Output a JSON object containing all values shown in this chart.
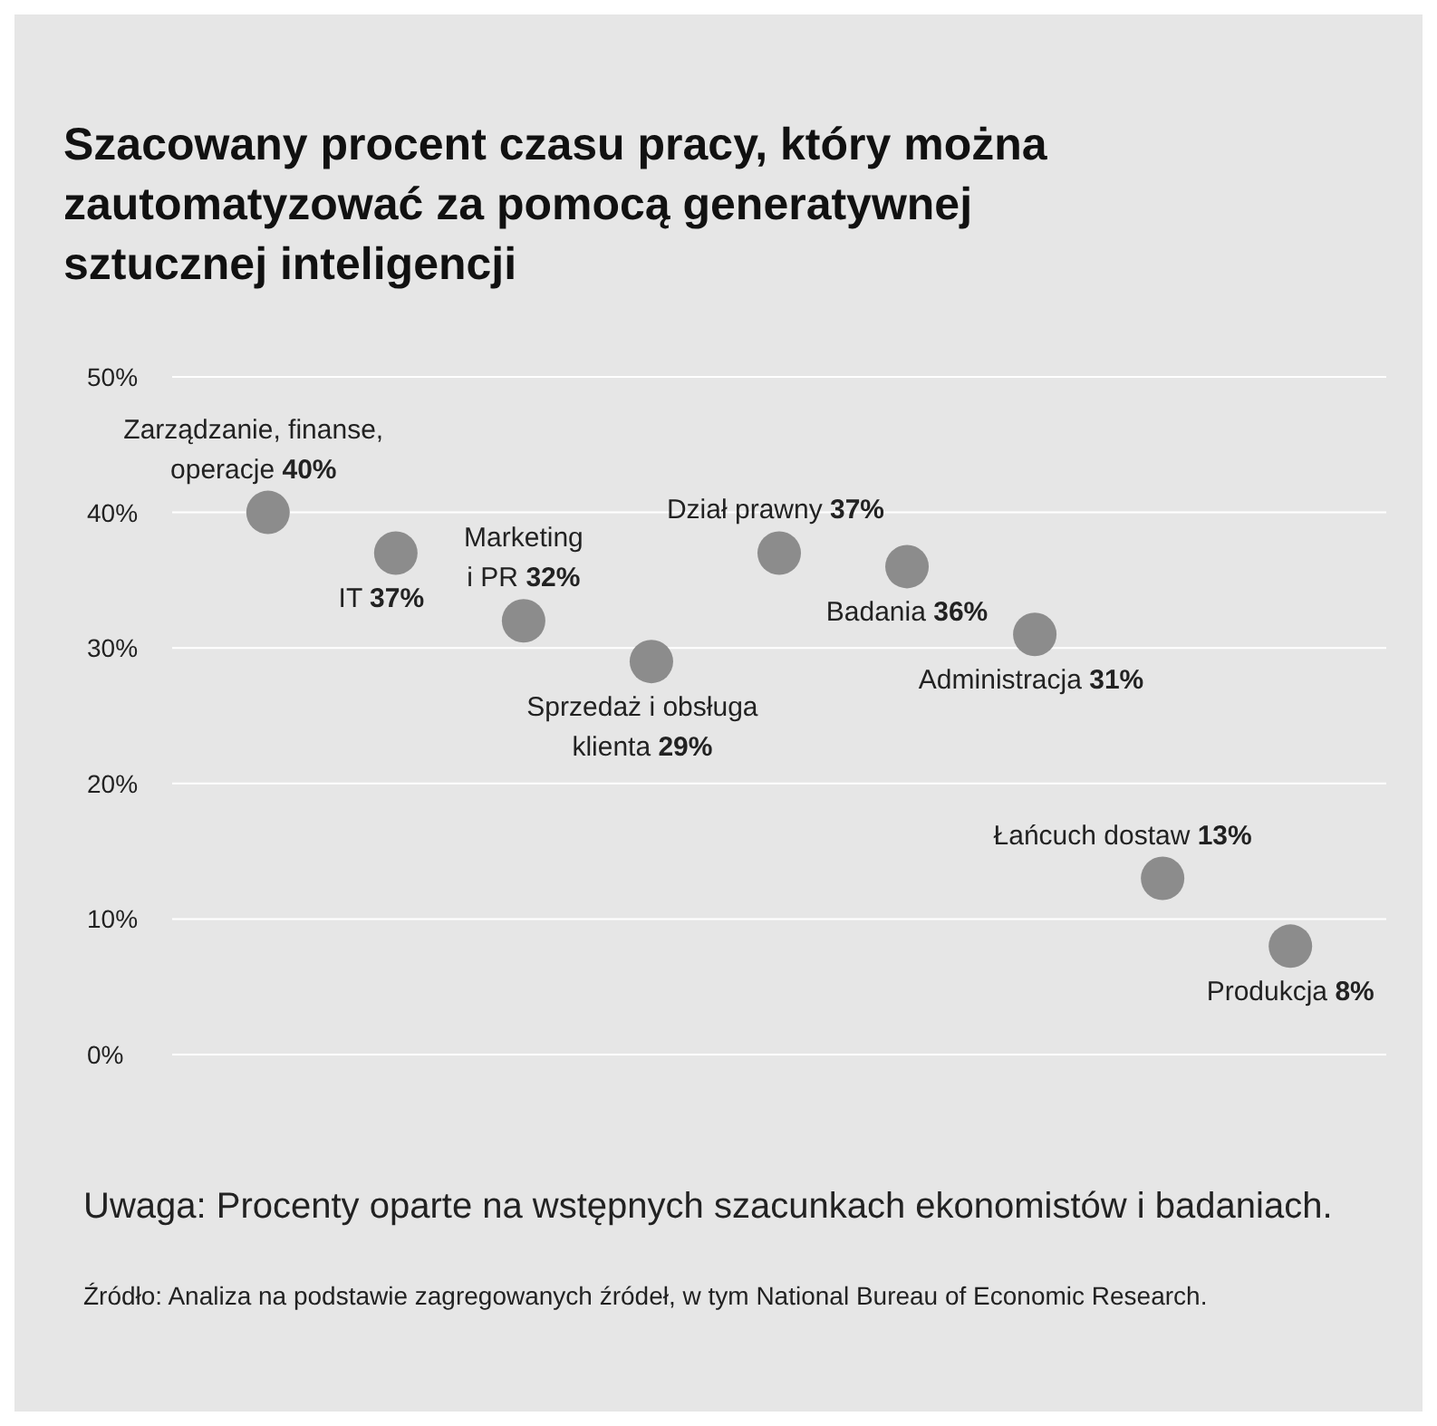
{
  "chart_data": {
    "type": "scatter",
    "title": "Szacowany procent czasu pracy, który można zautomatyzować za pomocą generatywnej sztucznej inteligencji",
    "categories": [
      null,
      null,
      null,
      null,
      null,
      null,
      null,
      null,
      null
    ],
    "series": [
      {
        "name": "Zarządzanie, finanse, operacje",
        "color": "#8c8c8c",
        "values": [
          40,
          null,
          null,
          null,
          null,
          null,
          null,
          null,
          null
        ],
        "value_labels": [
          "40%",
          null,
          null,
          null,
          null,
          null,
          null,
          null,
          null
        ]
      },
      {
        "name": "IT",
        "color": "#8c8c8c",
        "values": [
          null,
          37,
          null,
          null,
          null,
          null,
          null,
          null,
          null
        ],
        "value_labels": [
          null,
          "37%",
          null,
          null,
          null,
          null,
          null,
          null,
          null
        ]
      },
      {
        "name": "Marketing i PR",
        "color": "#8c8c8c",
        "values": [
          null,
          null,
          32,
          null,
          null,
          null,
          null,
          null,
          null
        ],
        "value_labels": [
          null,
          null,
          "32%",
          null,
          null,
          null,
          null,
          null,
          null
        ]
      },
      {
        "name": "Sprzedaż i obsługa klienta",
        "color": "#8c8c8c",
        "values": [
          null,
          null,
          null,
          29,
          null,
          null,
          null,
          null,
          null
        ],
        "value_labels": [
          null,
          null,
          null,
          "29%",
          null,
          null,
          null,
          null,
          null
        ]
      },
      {
        "name": "Dział prawny",
        "color": "#8c8c8c",
        "values": [
          null,
          null,
          null,
          null,
          37,
          null,
          null,
          null,
          null
        ],
        "value_labels": [
          null,
          null,
          null,
          null,
          "37%",
          null,
          null,
          null,
          null
        ]
      },
      {
        "name": "Badania",
        "color": "#8c8c8c",
        "values": [
          null,
          null,
          null,
          null,
          null,
          36,
          null,
          null,
          null
        ],
        "value_labels": [
          null,
          null,
          null,
          null,
          null,
          "36%",
          null,
          null,
          null
        ]
      },
      {
        "name": "Administracja",
        "color": "#8c8c8c",
        "values": [
          null,
          null,
          null,
          null,
          null,
          null,
          31,
          null,
          null
        ],
        "value_labels": [
          null,
          null,
          null,
          null,
          null,
          null,
          "31%",
          null,
          null
        ]
      },
      {
        "name": "Łańcuch dostaw",
        "color": "#8c8c8c",
        "values": [
          null,
          null,
          null,
          null,
          null,
          null,
          null,
          13,
          null
        ],
        "value_labels": [
          null,
          null,
          null,
          null,
          null,
          null,
          null,
          "13%",
          null
        ]
      },
      {
        "name": "Produkcja",
        "color": "#8c8c8c",
        "values": [
          null,
          null,
          null,
          null,
          null,
          null,
          null,
          null,
          8
        ],
        "value_labels": [
          null,
          null,
          null,
          null,
          null,
          null,
          null,
          null,
          "8%"
        ]
      }
    ],
    "ylim": [
      0,
      50
    ],
    "yticks": [
      {
        "value": 0,
        "label": "0%"
      },
      {
        "value": 10,
        "label": "10%"
      },
      {
        "value": 20,
        "label": "20%"
      },
      {
        "value": 30,
        "label": "30%"
      },
      {
        "value": 40,
        "label": "40%"
      },
      {
        "value": 50,
        "label": "50%"
      }
    ],
    "grid": "y",
    "marker": "circle",
    "annotations": [
      "Uwaga: Procenty oparte na wstępnych szacunkach ekonomistów i badaniach.",
      "Źródło: Analiza na podstawie zagregowanych źródeł, w tym National Bureau of Economic Research."
    ]
  }
}
